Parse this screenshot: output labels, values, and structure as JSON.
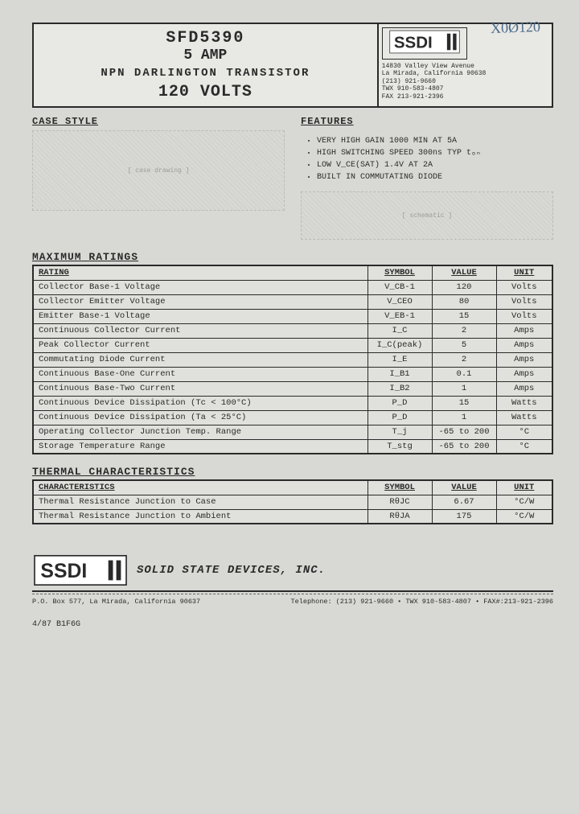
{
  "handwritten": "X0Ø120",
  "header": {
    "part_number": "SFD5390",
    "amp_line": "5 AMP",
    "type_line": "NPN DARLINGTON TRANSISTOR",
    "volts_line": "120 VOLTS",
    "company_addr": [
      "14830 Valley View Avenue",
      "La Mirada, California 90638",
      "(213) 921-9660",
      "TWX 910-583-4807",
      "FAX 213-921-2396"
    ],
    "logo_text": "SSDI"
  },
  "case_style_title": "CASE STYLE",
  "features_title": "FEATURES",
  "features": [
    "VERY HIGH GAIN 1000 MIN AT 5A",
    "HIGH SWITCHING SPEED 300ns TYP tₒₙ",
    "LOW V_CE(SAT) 1.4V AT 2A",
    "BUILT IN COMMUTATING DIODE"
  ],
  "max_ratings_title": "MAXIMUM RATINGS",
  "max_headers": [
    "RATING",
    "SYMBOL",
    "VALUE",
    "UNIT"
  ],
  "max_rows": [
    [
      "Collector Base-1 Voltage",
      "V_CB-1",
      "120",
      "Volts"
    ],
    [
      "Collector Emitter Voltage",
      "V_CEO",
      "80",
      "Volts"
    ],
    [
      "Emitter Base-1 Voltage",
      "V_EB-1",
      "15",
      "Volts"
    ],
    [
      "Continuous Collector Current",
      "I_C",
      "2",
      "Amps"
    ],
    [
      "Peak Collector Current",
      "I_C(peak)",
      "5",
      "Amps"
    ],
    [
      "Commutating Diode Current",
      "I_E",
      "2",
      "Amps"
    ],
    [
      "Continuous Base-One Current",
      "I_B1",
      "0.1",
      "Amps"
    ],
    [
      "Continuous Base-Two Current",
      "I_B2",
      "1",
      "Amps"
    ],
    [
      "Continuous Device Dissipation (Tc < 100°C)",
      "P_D",
      "15",
      "Watts"
    ],
    [
      "Continuous Device Dissipation (Ta < 25°C)",
      "P_D",
      "1",
      "Watts"
    ],
    [
      "Operating Collector Junction Temp. Range",
      "T_j",
      "-65 to 200",
      "°C"
    ],
    [
      "Storage Temperature Range",
      "T_stg",
      "-65 to 200",
      "°C"
    ]
  ],
  "thermal_title": "THERMAL CHARACTERISTICS",
  "thermal_headers": [
    "CHARACTERISTICS",
    "SYMBOL",
    "VALUE",
    "UNIT"
  ],
  "thermal_rows": [
    [
      "Thermal Resistance Junction to Case",
      "RθJC",
      "6.67",
      "°C/W"
    ],
    [
      "Thermal Resistance Junction to Ambient",
      "RθJA",
      "175",
      "°C/W"
    ]
  ],
  "footer": {
    "company": "SOLID STATE DEVICES, INC.",
    "left": "P.O. Box 577, La Mirada, California 90637",
    "right": "Telephone: (213) 921-9660 • TWX 910-583-4807 • FAX#:213-921-2396",
    "date_code": "4/87   B1F6G"
  },
  "colors": {
    "bg": "#d8d8d4",
    "ink": "#2a2a2a",
    "hand": "#4a6a8a"
  }
}
